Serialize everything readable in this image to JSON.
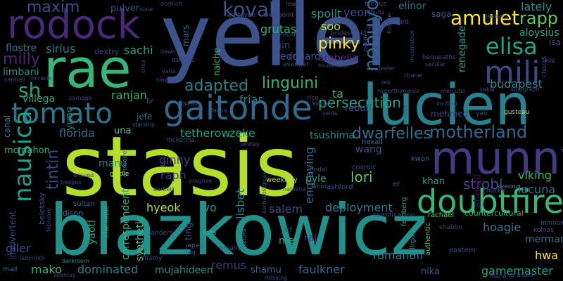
{
  "words": [
    {
      "text": "stasis",
      "color": "#b5de2b"
    },
    {
      "text": "blazkowicz",
      "color": "#21918c"
    },
    {
      "text": "yeller",
      "color": "#3b528b"
    },
    {
      "text": "rae",
      "color": "#35b779"
    },
    {
      "text": "lucien",
      "color": "#26828e"
    },
    {
      "text": "rodock",
      "color": "#482878"
    },
    {
      "text": "gaitonde",
      "color": "#31688e"
    },
    {
      "text": "munny",
      "color": "#443983"
    },
    {
      "text": "tomato",
      "color": "#2a788e"
    },
    {
      "text": "doubtfire",
      "color": "#35b779"
    },
    {
      "text": "nausica",
      "color": "#1f9e89"
    },
    {
      "text": "mili",
      "color": "#3e4989"
    },
    {
      "text": "motherland",
      "color": "#31688e"
    },
    {
      "text": "elisa",
      "color": "#20a486"
    },
    {
      "text": "linguini",
      "color": "#2db27d"
    },
    {
      "text": "kovak",
      "color": "#3b528b"
    },
    {
      "text": "amulet",
      "color": "#fde725"
    },
    {
      "text": "maxim",
      "color": "#3e4989"
    },
    {
      "text": "nobuyo",
      "color": "#31688e"
    },
    {
      "text": "rapp",
      "color": "#5ec962"
    },
    {
      "text": "sh",
      "color": "#22a884"
    },
    {
      "text": "milly",
      "color": "#482878"
    },
    {
      "text": "adapted",
      "color": "#26828e"
    },
    {
      "text": "tintin",
      "color": "#414487"
    },
    {
      "text": "dwarfelles",
      "color": "#2c728e"
    },
    {
      "text": "persecution",
      "color": "#20a486"
    },
    {
      "text": "pinky",
      "color": "#fde725"
    },
    {
      "text": "sirius",
      "color": "#2a788e"
    },
    {
      "text": "sachi",
      "color": "#1f9e89"
    },
    {
      "text": "grutas",
      "color": "#2db27d"
    },
    {
      "text": "spoilt",
      "color": "#21918c"
    },
    {
      "text": "yeon",
      "color": "#3e4989"
    },
    {
      "text": "soo",
      "color": "#bddf26"
    },
    {
      "text": "jin",
      "color": "#443983"
    },
    {
      "text": "edouard",
      "color": "#3b528b"
    },
    {
      "text": "arabella",
      "color": "#482878"
    },
    {
      "text": "renegade",
      "color": "#1f9e89"
    },
    {
      "text": "budapest",
      "color": "#25858e"
    },
    {
      "text": "elinor",
      "color": "#2c728e"
    },
    {
      "text": "saga",
      "color": "#3b528b"
    },
    {
      "text": "lately",
      "color": "#21918c"
    },
    {
      "text": "aloysius",
      "color": "#20a486"
    },
    {
      "text": "isa",
      "color": "#3e4989"
    },
    {
      "text": "pulver",
      "color": "#3b528b"
    },
    {
      "text": "flostre",
      "color": "#2a788e"
    },
    {
      "text": "limbani",
      "color": "#21918c"
    },
    {
      "text": "villega",
      "color": "#20a486"
    },
    {
      "text": "ranjan",
      "color": "#2db27d"
    },
    {
      "text": "friar",
      "color": "#26828e"
    },
    {
      "text": "ta",
      "color": "#2db27d"
    },
    {
      "text": "tetherow",
      "color": "#20a486"
    },
    {
      "text": "zeke",
      "color": "#1f9e89"
    },
    {
      "text": "florida",
      "color": "#2c728e"
    },
    {
      "text": "una",
      "color": "#5ec962"
    },
    {
      "text": "tsushima",
      "color": "#21918c"
    },
    {
      "text": "wang",
      "color": "#3b528b"
    },
    {
      "text": "manu",
      "color": "#25858e"
    },
    {
      "text": "ginny",
      "color": "#404688"
    },
    {
      "text": "raph",
      "color": "#443983"
    },
    {
      "text": "lori",
      "color": "#5ec962"
    },
    {
      "text": "khan",
      "color": "#1f9e89"
    },
    {
      "text": "strobl",
      "color": "#3e4989"
    },
    {
      "text": "viking",
      "color": "#35b779"
    },
    {
      "text": "lacuna",
      "color": "#31688e"
    },
    {
      "text": "hyeok",
      "color": "#b5de2b"
    },
    {
      "text": "ivo",
      "color": "#21918c"
    },
    {
      "text": "lisbet",
      "color": "#26828e"
    },
    {
      "text": "salem",
      "color": "#3e4989"
    },
    {
      "text": "deployment",
      "color": "#2a788e"
    },
    {
      "text": "engraving",
      "color": "#31688e"
    },
    {
      "text": "mcmahon",
      "color": "#2db27d"
    },
    {
      "text": "jefe",
      "color": "#31688e"
    },
    {
      "text": "mehmed",
      "color": "#414487"
    },
    {
      "text": "rebuff",
      "color": "#3b528b"
    },
    {
      "text": "hoagie",
      "color": "#2a788e"
    },
    {
      "text": "ahmed",
      "color": "#440154"
    },
    {
      "text": "merman",
      "color": "#2c728e"
    },
    {
      "text": "hwa",
      "color": "#fde725"
    },
    {
      "text": "gamemaster",
      "color": "#20a486"
    },
    {
      "text": "romanoff",
      "color": "#25858e"
    },
    {
      "text": "faulkner",
      "color": "#31688e"
    },
    {
      "text": "nika",
      "color": "#3b528b"
    },
    {
      "text": "shamu",
      "color": "#31688e"
    },
    {
      "text": "remus",
      "color": "#443983"
    },
    {
      "text": "mujahideen",
      "color": "#21918c"
    },
    {
      "text": "dominated",
      "color": "#26828e"
    },
    {
      "text": "mako",
      "color": "#2db27d"
    },
    {
      "text": "giler",
      "color": "#3e4989"
    },
    {
      "text": "yaotl",
      "color": "#22a884"
    },
    {
      "text": "correspondent",
      "color": "#2db27d"
    },
    {
      "text": "synthetic",
      "color": "#35b779"
    },
    {
      "text": "ting",
      "color": "#3b528b"
    },
    {
      "text": "mei",
      "color": "#1f9e89"
    },
    {
      "text": "raj",
      "color": "#443983"
    },
    {
      "text": "pyle",
      "color": "#1f9e89"
    },
    {
      "text": "beletsky",
      "color": "#3b528b"
    },
    {
      "text": "edison",
      "color": "#2a788e"
    },
    {
      "text": "sultan",
      "color": "#31688e"
    },
    {
      "text": "inadvertent",
      "color": "#404688"
    },
    {
      "text": "canal",
      "color": "#2c728e"
    },
    {
      "text": "yuno",
      "color": "#26828e"
    },
    {
      "text": "naiche",
      "color": "#35b779"
    },
    {
      "text": "mars",
      "color": "#31688e"
    },
    {
      "text": "dextry",
      "color": "#414487"
    },
    {
      "text": "hexall",
      "color": "#2c728e"
    },
    {
      "text": "cosmic",
      "color": "#3e4989"
    },
    {
      "text": "kwon",
      "color": "#31688e"
    },
    {
      "text": "ashford",
      "color": "#3b528b"
    },
    {
      "text": "weekday",
      "color": "#b5de2b"
    },
    {
      "text": "hodel",
      "color": "#3e4989"
    },
    {
      "text": "abin",
      "color": "#3e4989"
    },
    {
      "text": "er",
      "color": "#31688e"
    },
    {
      "text": "chucky",
      "color": "#3e4989"
    },
    {
      "text": "kyeong",
      "color": "#2a788e"
    },
    {
      "text": "countercultural",
      "color": "#2db27d"
    },
    {
      "text": "ramification",
      "color": "#3e4989"
    },
    {
      "text": "rachael",
      "color": "#5ec962"
    },
    {
      "text": "feinberg",
      "color": "#1f9e89"
    },
    {
      "text": "gilligan",
      "color": "#21918c"
    },
    {
      "text": "authentic",
      "color": "#35b779"
    },
    {
      "text": "shabbo",
      "color": "#404688"
    },
    {
      "text": "kolnas",
      "color": "#3e4989"
    },
    {
      "text": "minnow",
      "color": "#3b528b"
    },
    {
      "text": "eastern",
      "color": "#3e4989"
    },
    {
      "text": "murasaki",
      "color": "#3e4989"
    },
    {
      "text": "mario",
      "color": "#3e4989"
    },
    {
      "text": "thad",
      "color": "#31688e"
    },
    {
      "text": "labyrinth",
      "color": "#3e4989"
    },
    {
      "text": "seamus",
      "color": "#3e4989"
    },
    {
      "text": "darkroom",
      "color": "#21918c"
    },
    {
      "text": "mamy",
      "color": "#3e4989"
    },
    {
      "text": "charitable",
      "color": "#35b779"
    },
    {
      "text": "janders",
      "color": "#3e4989"
    },
    {
      "text": "reza",
      "color": "#35b779"
    },
    {
      "text": "japan",
      "color": "#2c728e"
    },
    {
      "text": "jaq",
      "color": "#3e4989"
    },
    {
      "text": "meany",
      "color": "#3e4989"
    },
    {
      "text": "takumi",
      "color": "#31688e"
    },
    {
      "text": "relaxing",
      "color": "#3e4989"
    },
    {
      "text": "lcf",
      "color": "#3e4989"
    },
    {
      "text": "grimoire",
      "color": "#2a788e"
    },
    {
      "text": "bartlett",
      "color": "#3e4989"
    },
    {
      "text": "pragnae",
      "color": "#3e4989"
    },
    {
      "text": "natasha",
      "color": "#3e4989"
    },
    {
      "text": "whitey",
      "color": "#3e4989"
    },
    {
      "text": "goldie",
      "color": "#b5de2b"
    },
    {
      "text": "ensued",
      "color": "#3e4989"
    },
    {
      "text": "mckenna",
      "color": "#3e4989"
    },
    {
      "text": "starship",
      "color": "#3e4989"
    },
    {
      "text": "fauna",
      "color": "#3e4989"
    },
    {
      "text": "visually",
      "color": "#3e4989"
    },
    {
      "text": "br",
      "color": "#3e4989"
    },
    {
      "text": "rice",
      "color": "#3e4989"
    },
    {
      "text": "zelda",
      "color": "#3e4989"
    },
    {
      "text": "inciting",
      "color": "#3e4989"
    },
    {
      "text": "yao",
      "color": "#3e4989"
    },
    {
      "text": "gusteau",
      "color": "#b5de2b"
    },
    {
      "text": "hyperthymesia",
      "color": "#3e4989"
    },
    {
      "text": "mercutio",
      "color": "#3e4989"
    },
    {
      "text": "sakai",
      "color": "#3e4989"
    },
    {
      "text": "kinograph",
      "color": "#3e4989"
    },
    {
      "text": "chorus",
      "color": "#3e4989"
    },
    {
      "text": "chanel",
      "color": "#3e4989"
    },
    {
      "text": "bequeaths",
      "color": "#3e4989"
    },
    {
      "text": "secular",
      "color": "#3e4989"
    },
    {
      "text": "houseboat",
      "color": "#3e4989"
    },
    {
      "text": "bridesmaid",
      "color": "#3e4989"
    },
    {
      "text": "clifford",
      "color": "#3e4989"
    },
    {
      "text": "fungus",
      "color": "#3e4989"
    },
    {
      "text": "fynn",
      "color": "#3e4989"
    },
    {
      "text": "avenger",
      "color": "#3e4989"
    },
    {
      "text": "pil",
      "color": "#3e4989"
    },
    {
      "text": "emhoff",
      "color": "#3e4989"
    },
    {
      "text": "walraven",
      "color": "#3e4989"
    },
    {
      "text": "viewpoint",
      "color": "#3e4989"
    },
    {
      "text": "dortlich",
      "color": "#3e4989"
    },
    {
      "text": "nixie",
      "color": "#3e4989"
    },
    {
      "text": "rewis",
      "color": "#3e4989"
    },
    {
      "text": "schultz",
      "color": "#3e4989"
    },
    {
      "text": "finletter",
      "color": "#3e4989"
    },
    {
      "text": "lambert",
      "color": "#3e4989"
    },
    {
      "text": "dawn",
      "color": "#3e4989"
    },
    {
      "text": "incantation",
      "color": "#3e4989"
    },
    {
      "text": "yana",
      "color": "#3e4989"
    },
    {
      "text": "slaying",
      "color": "#3e4989"
    },
    {
      "text": "circa",
      "color": "#3e4989"
    },
    {
      "text": "miracle",
      "color": "#3e4989"
    },
    {
      "text": "carnage",
      "color": "#3e4989"
    },
    {
      "text": "cantrell",
      "color": "#3e4989"
    },
    {
      "text": "reb",
      "color": "#3e4989"
    },
    {
      "text": "frontier",
      "color": "#3e4989"
    },
    {
      "text": "danvers",
      "color": "#3e4989"
    },
    {
      "text": "idle",
      "color": "#3e4989"
    },
    {
      "text": "zenith",
      "color": "#3e4989"
    },
    {
      "text": "kiersey",
      "color": "#3e4989"
    },
    {
      "text": "hedges",
      "color": "#3e4989"
    },
    {
      "text": "february",
      "color": "#3e4989"
    },
    {
      "text": "eschatological",
      "color": "#3e4989"
    },
    {
      "text": "fester",
      "color": "#3e4989"
    },
    {
      "text": "tagg",
      "color": "#3e4989"
    },
    {
      "text": "sampi",
      "color": "#3e4989"
    }
  ]
}
